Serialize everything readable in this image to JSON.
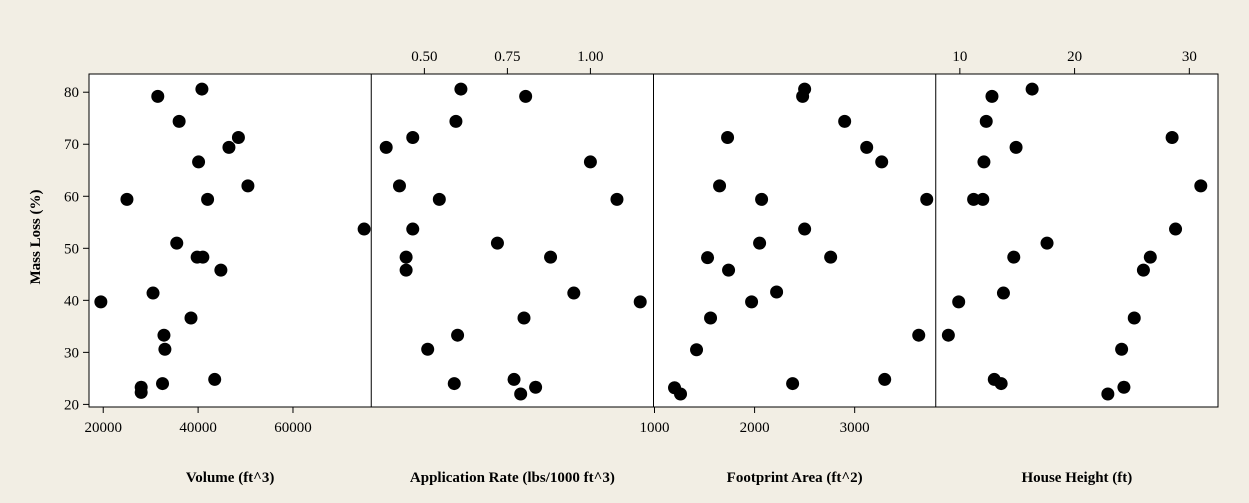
{
  "chart_data": {
    "type": "scatter",
    "y": {
      "label": "Mass Loss (%)",
      "range": [
        19.5,
        83.5
      ],
      "ticks": [
        20,
        30,
        40,
        50,
        60,
        70,
        80
      ],
      "tick_labels": [
        "20",
        "30",
        "40",
        "50",
        "60",
        "70",
        "80"
      ]
    },
    "panels": [
      {
        "xlabel": "Volume (ft^3)",
        "axis_side": "bottom",
        "range": [
          17000,
          76500
        ],
        "ticks": [
          20000,
          40000,
          60000
        ],
        "tick_labels": [
          "20000",
          "40000",
          "60000"
        ],
        "points": [
          [
            19500,
            39.7
          ],
          [
            25000,
            59.4
          ],
          [
            28000,
            22.3
          ],
          [
            28000,
            23.3
          ],
          [
            30500,
            41.4
          ],
          [
            31500,
            79.2
          ],
          [
            32500,
            24.0
          ],
          [
            32800,
            33.3
          ],
          [
            33000,
            30.6
          ],
          [
            35500,
            51.0
          ],
          [
            36000,
            74.4
          ],
          [
            38500,
            36.6
          ],
          [
            39800,
            48.3
          ],
          [
            40100,
            66.6
          ],
          [
            40800,
            80.6
          ],
          [
            41000,
            48.3
          ],
          [
            42000,
            59.4
          ],
          [
            43500,
            24.8
          ],
          [
            44800,
            45.8
          ],
          [
            46500,
            69.4
          ],
          [
            48500,
            71.3
          ],
          [
            50500,
            62.0
          ],
          [
            75000,
            53.7
          ]
        ]
      },
      {
        "xlabel": "Application Rate (lbs/1000 ft^3)",
        "axis_side": "top",
        "range": [
          0.34,
          1.19
        ],
        "ticks": [
          0.5,
          0.75,
          1.0
        ],
        "tick_labels": [
          "0.50",
          "0.75",
          "1.00"
        ],
        "points": [
          [
            0.385,
            69.4
          ],
          [
            0.425,
            62.0
          ],
          [
            0.445,
            48.3
          ],
          [
            0.445,
            45.8
          ],
          [
            0.465,
            71.3
          ],
          [
            0.465,
            53.7
          ],
          [
            0.51,
            30.6
          ],
          [
            0.545,
            59.4
          ],
          [
            0.59,
            24.0
          ],
          [
            0.595,
            74.4
          ],
          [
            0.6,
            33.3
          ],
          [
            0.61,
            80.6
          ],
          [
            0.72,
            51.0
          ],
          [
            0.77,
            24.8
          ],
          [
            0.79,
            22.0
          ],
          [
            0.8,
            36.6
          ],
          [
            0.805,
            79.2
          ],
          [
            0.835,
            23.3
          ],
          [
            0.88,
            48.3
          ],
          [
            0.95,
            41.4
          ],
          [
            1.0,
            66.6
          ],
          [
            1.08,
            59.4
          ],
          [
            1.15,
            39.7
          ]
        ]
      },
      {
        "xlabel": "Footprint Area (ft^2)",
        "axis_side": "bottom",
        "range": [
          990,
          3810
        ],
        "ticks": [
          1000,
          2000,
          3000
        ],
        "tick_labels": [
          "1000",
          "2000",
          "3000"
        ],
        "points": [
          [
            1200,
            23.2
          ],
          [
            1260,
            22.0
          ],
          [
            1420,
            30.5
          ],
          [
            1530,
            48.2
          ],
          [
            1560,
            36.6
          ],
          [
            1650,
            62.0
          ],
          [
            1730,
            71.3
          ],
          [
            1740,
            45.8
          ],
          [
            1970,
            39.7
          ],
          [
            2050,
            51.0
          ],
          [
            2070,
            59.4
          ],
          [
            2220,
            41.6
          ],
          [
            2380,
            24.0
          ],
          [
            2480,
            79.2
          ],
          [
            2500,
            80.6
          ],
          [
            2500,
            53.7
          ],
          [
            2760,
            48.3
          ],
          [
            2900,
            74.4
          ],
          [
            3120,
            69.4
          ],
          [
            3270,
            66.6
          ],
          [
            3300,
            24.8
          ],
          [
            3640,
            33.3
          ],
          [
            3720,
            59.4
          ]
        ]
      },
      {
        "xlabel": "House Height (ft)",
        "axis_side": "top",
        "range": [
          7.9,
          32.5
        ],
        "ticks": [
          10,
          20,
          30
        ],
        "tick_labels": [
          "10",
          "20",
          "30"
        ],
        "points": [
          [
            9.0,
            33.3
          ],
          [
            9.9,
            39.7
          ],
          [
            11.2,
            59.4
          ],
          [
            12.0,
            59.4
          ],
          [
            12.1,
            66.6
          ],
          [
            12.3,
            74.4
          ],
          [
            12.8,
            79.2
          ],
          [
            13.0,
            24.8
          ],
          [
            13.6,
            24.0
          ],
          [
            13.8,
            41.4
          ],
          [
            14.7,
            48.3
          ],
          [
            14.9,
            69.4
          ],
          [
            16.3,
            80.6
          ],
          [
            17.6,
            51.0
          ],
          [
            22.9,
            22.0
          ],
          [
            24.1,
            30.6
          ],
          [
            24.3,
            23.3
          ],
          [
            25.2,
            36.6
          ],
          [
            26.0,
            45.8
          ],
          [
            26.6,
            48.3
          ],
          [
            28.5,
            71.3
          ],
          [
            28.8,
            53.7
          ],
          [
            31.0,
            62.0
          ]
        ]
      }
    ]
  }
}
